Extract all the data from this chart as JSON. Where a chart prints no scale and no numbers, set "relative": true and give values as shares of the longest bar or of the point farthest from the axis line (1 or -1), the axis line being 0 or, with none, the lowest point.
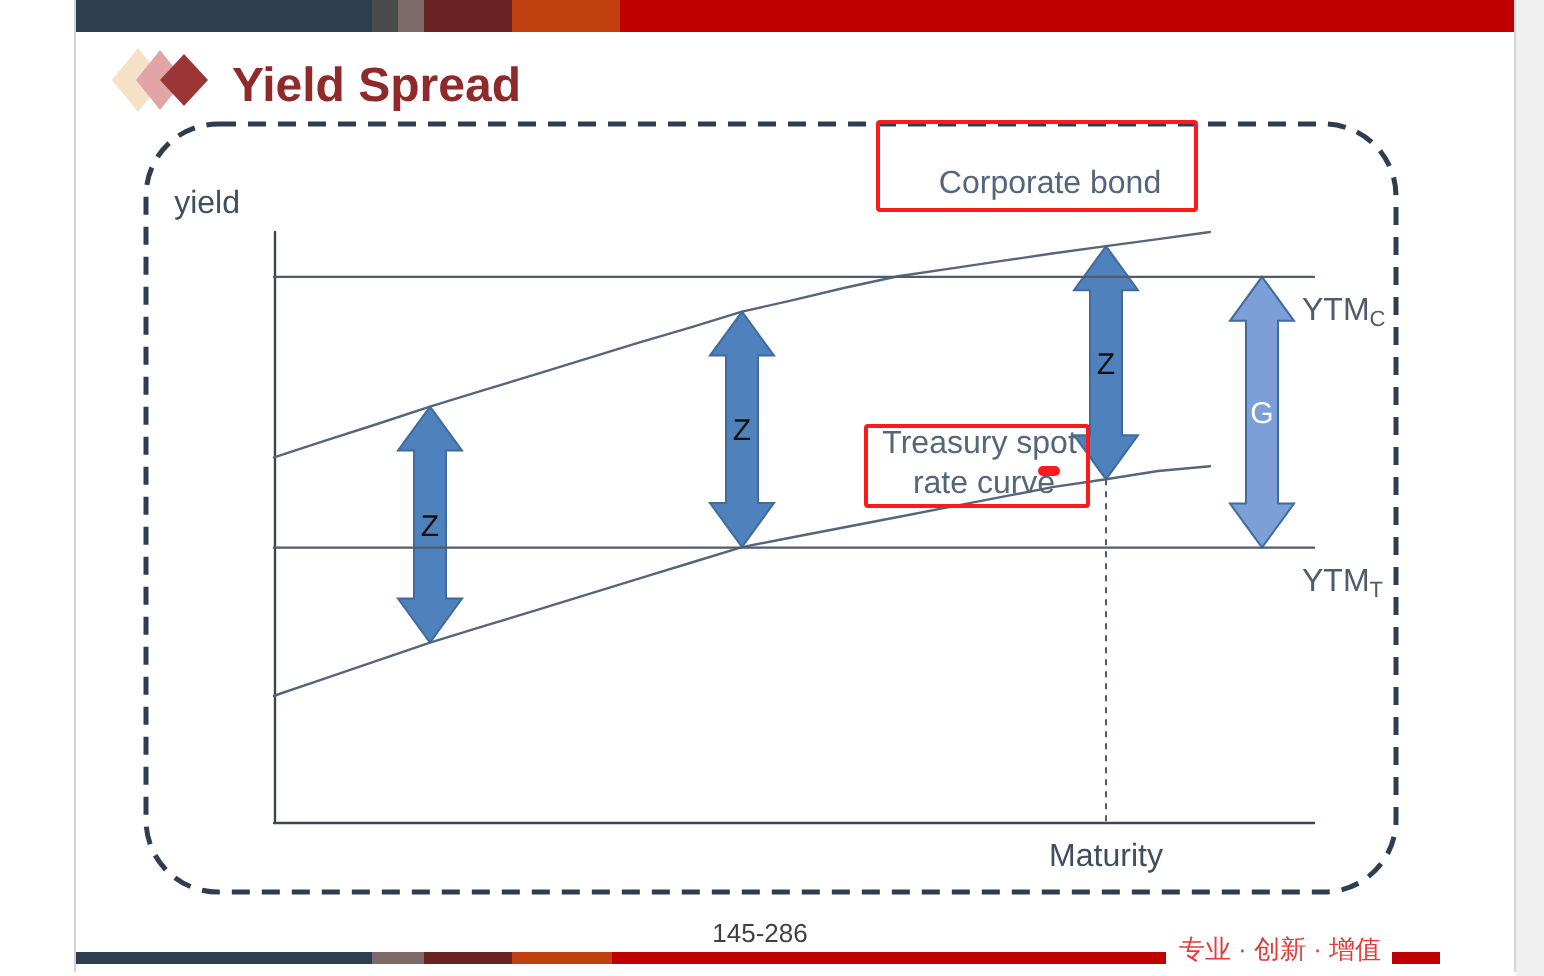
{
  "chart_data": {
    "type": "line",
    "title": "Yield Spread",
    "xlabel": "Maturity",
    "ylabel": "yield",
    "relative": true,
    "categories": [
      null,
      null,
      null,
      null,
      null,
      null,
      null,
      null,
      null,
      null,
      null,
      null,
      null,
      null,
      null,
      null,
      null,
      null,
      null,
      null,
      null
    ],
    "series": [
      {
        "name": "Corporate bond",
        "color": "#56667a",
        "values": [
          0.618,
          0.647,
          0.675,
          0.704,
          0.731,
          0.758,
          0.785,
          0.812,
          0.838,
          0.865,
          0.885,
          0.906,
          0.925,
          0.938,
          0.951,
          0.964,
          0.976,
          0.988,
          1,
          null,
          null
        ]
      },
      {
        "name": "Treasury spot rate curve",
        "color": "#56667a",
        "values": [
          0.214,
          0.244,
          0.274,
          0.304,
          0.331,
          0.358,
          0.385,
          0.412,
          0.439,
          0.466,
          0.483,
          0.5,
          0.517,
          0.534,
          0.551,
          0.568,
          0.581,
          0.595,
          0.603,
          null,
          null
        ]
      },
      {
        "name": "YTM$_{C}$",
        "color": "#4e5c6c",
        "values": [
          0.924,
          0.924,
          0.924,
          0.924,
          0.924,
          0.924,
          0.924,
          0.924,
          0.924,
          0.924,
          0.924,
          0.924,
          0.924,
          0.924,
          0.924,
          0.924,
          0.924,
          0.924,
          0.924,
          0.924,
          0.924
        ]
      },
      {
        "name": "YTM$_{T}$",
        "color": "#4e5c6c",
        "values": [
          0.465,
          0.465,
          0.465,
          0.465,
          0.465,
          0.465,
          0.465,
          0.465,
          0.465,
          0.465,
          0.465,
          0.465,
          0.465,
          0.465,
          0.465,
          0.465,
          0.465,
          0.465,
          0.465,
          0.465,
          0.465
        ]
      }
    ],
    "annotations": [
      "Z",
      "Z",
      "Z",
      "G",
      "145-286",
      "专业 · 创新 · 增值"
    ]
  }
}
